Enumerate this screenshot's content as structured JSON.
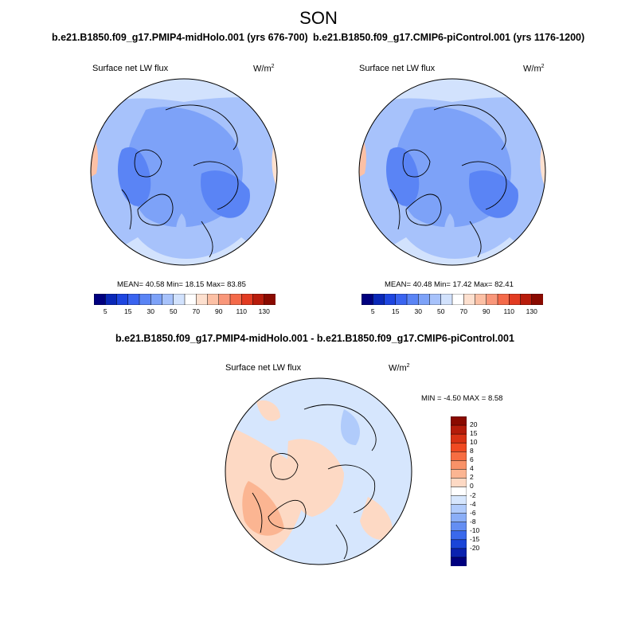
{
  "figure": {
    "season": "SON",
    "variable": "Surface net LW flux",
    "units": "W/m",
    "units_sup": "2"
  },
  "panels": [
    {
      "title": "b.e21.B1850.f09_g17.PMIP4-midHolo.001 (yrs 676-700)",
      "stats": "MEAN=  40.58  Min=  18.15  Max=  83.85"
    },
    {
      "title": "b.e21.B1850.f09_g17.CMIP6-piControl.001 (yrs 1176-1200)",
      "stats": "MEAN=  40.48  Min=  17.42  Max=  82.41"
    }
  ],
  "diff_panel": {
    "title": "b.e21.B1850.f09_g17.PMIP4-midHolo.001 - b.e21.B1850.f09_g17.CMIP6-piControl.001",
    "stats": "MIN =  -4.50 MAX =   8.58"
  },
  "colorbar_abs": {
    "colors": [
      "#00007f",
      "#0a28b8",
      "#1e46e0",
      "#3a64f0",
      "#5a84f5",
      "#7da2f8",
      "#a7c2fb",
      "#d2e2fd",
      "#ffffff",
      "#fde0cf",
      "#fcc0a5",
      "#f9977a",
      "#f46a4a",
      "#e23b22",
      "#b81c0c",
      "#8a0a00"
    ],
    "tick_labels": [
      "5",
      "15",
      "30",
      "50",
      "70",
      "90",
      "110",
      "130"
    ]
  },
  "colorbar_diff": {
    "colors": [
      "#8a0a00",
      "#b41c0a",
      "#d83214",
      "#f04a22",
      "#f76d42",
      "#f99268",
      "#fbb592",
      "#fdd9c4",
      "#ffffff",
      "#d6e6fd",
      "#b0cbfb",
      "#8aaef7",
      "#648ef3",
      "#3a69ec",
      "#1a45d8",
      "#0a22b0",
      "#00007f"
    ],
    "tick_labels": [
      "20",
      "15",
      "10",
      "8",
      "6",
      "4",
      "2",
      "0",
      "-2",
      "-4",
      "-6",
      "-8",
      "-10",
      "-15",
      "-20"
    ]
  },
  "chart_data": [
    {
      "type": "heatmap",
      "projection": "north polar stereographic",
      "title": "b.e21.B1850.f09_g17.PMIP4-midHolo.001 (yrs 676-700)",
      "season": "SON",
      "variable": "Surface net LW flux",
      "units": "W/m2",
      "mean": 40.58,
      "min": 18.15,
      "max": 83.85,
      "levels": [
        5,
        10,
        15,
        20,
        30,
        40,
        50,
        60,
        70,
        80,
        90,
        100,
        110,
        120,
        130
      ]
    },
    {
      "type": "heatmap",
      "projection": "north polar stereographic",
      "title": "b.e21.B1850.f09_g17.CMIP6-piControl.001 (yrs 1176-1200)",
      "season": "SON",
      "variable": "Surface net LW flux",
      "units": "W/m2",
      "mean": 40.48,
      "min": 17.42,
      "max": 82.41,
      "levels": [
        5,
        10,
        15,
        20,
        30,
        40,
        50,
        60,
        70,
        80,
        90,
        100,
        110,
        120,
        130
      ]
    },
    {
      "type": "heatmap",
      "projection": "north polar stereographic",
      "title": "b.e21.B1850.f09_g17.PMIP4-midHolo.001 - b.e21.B1850.f09_g17.CMIP6-piControl.001",
      "variable": "Surface net LW flux",
      "units": "W/m2",
      "min": -4.5,
      "max": 8.58,
      "levels": [
        -20,
        -15,
        -10,
        -8,
        -6,
        -4,
        -2,
        0,
        2,
        4,
        6,
        8,
        10,
        15,
        20
      ]
    }
  ]
}
